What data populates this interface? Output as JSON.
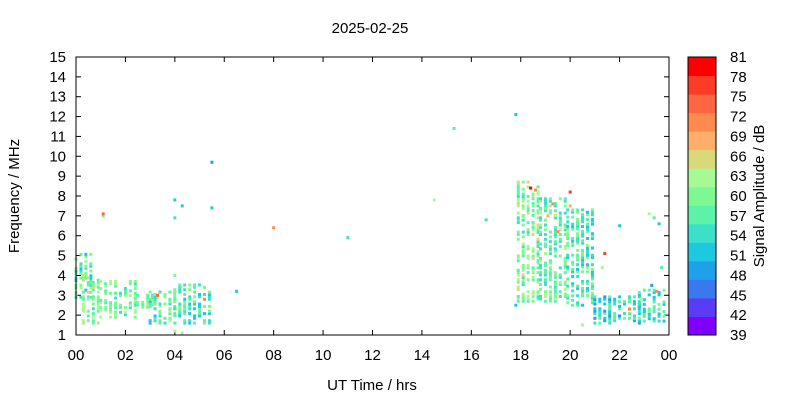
{
  "chart_data": {
    "type": "heatmap",
    "title": "2025-02-25",
    "xlabel": "UT Time / hrs",
    "ylabel": "Frequency / MHz",
    "colorbar_label": "Signal Amplitude / dB",
    "xlim": [
      0,
      24
    ],
    "ylim": [
      1,
      15
    ],
    "x_ticks": [
      "00",
      "02",
      "04",
      "06",
      "08",
      "10",
      "12",
      "14",
      "16",
      "18",
      "20",
      "22",
      "00"
    ],
    "y_ticks": [
      "1",
      "2",
      "3",
      "4",
      "5",
      "6",
      "7",
      "8",
      "9",
      "10",
      "11",
      "12",
      "13",
      "14",
      "15"
    ],
    "colorbar_ticks": [
      "39",
      "42",
      "45",
      "48",
      "51",
      "54",
      "57",
      "60",
      "63",
      "66",
      "69",
      "72",
      "75",
      "78",
      "81"
    ],
    "colorbar_range": [
      39,
      81
    ],
    "colorbar_colors": [
      "#8000ff",
      "#5a3cf5",
      "#3a78f0",
      "#1fa0ea",
      "#1ec8e0",
      "#3ce0c8",
      "#5cf2aa",
      "#7ef890",
      "#a6fa96",
      "#d8da7a",
      "#fdae6a",
      "#fd8a4e",
      "#fd6640",
      "#fd3c28",
      "#ff0000"
    ],
    "point_groups": [
      {
        "x": [
          0.0,
          0.6
        ],
        "y": [
          2.9,
          5.1
        ],
        "value": 57
      },
      {
        "x": [
          0.3,
          1.0
        ],
        "y": [
          1.6,
          4.0
        ],
        "value": 60
      },
      {
        "x": [
          1.0,
          2.5
        ],
        "y": [
          1.9,
          3.8
        ],
        "value": 59
      },
      {
        "x": [
          2.5,
          3.3
        ],
        "y": [
          2.4,
          3.2
        ],
        "value": 61
      },
      {
        "x": [
          3.0,
          4.0
        ],
        "y": [
          1.6,
          3.2
        ],
        "value": 57
      },
      {
        "x": [
          4.0,
          5.5
        ],
        "y": [
          1.6,
          3.6
        ],
        "value": 56
      },
      {
        "x": [
          17.9,
          18.8
        ],
        "y": [
          2.7,
          8.7
        ],
        "value": 60
      },
      {
        "x": [
          18.8,
          19.9
        ],
        "y": [
          2.7,
          7.9
        ],
        "value": 58
      },
      {
        "x": [
          19.9,
          21.0
        ],
        "y": [
          2.5,
          7.3
        ],
        "value": 56
      },
      {
        "x": [
          21.0,
          22.8
        ],
        "y": [
          1.6,
          3.0
        ],
        "value": 54
      },
      {
        "x": [
          22.8,
          23.9
        ],
        "y": [
          1.7,
          3.3
        ],
        "value": 55
      }
    ],
    "points": [
      {
        "x": 1.1,
        "y": 7.0,
        "value": 60
      },
      {
        "x": 1.1,
        "y": 7.1,
        "value": 74
      },
      {
        "x": 3.3,
        "y": 3.0,
        "value": 73
      },
      {
        "x": 4.0,
        "y": 6.9,
        "value": 53
      },
      {
        "x": 4.0,
        "y": 7.8,
        "value": 52
      },
      {
        "x": 4.3,
        "y": 7.5,
        "value": 51
      },
      {
        "x": 4.0,
        "y": 4.0,
        "value": 61
      },
      {
        "x": 4.0,
        "y": 1.2,
        "value": 62
      },
      {
        "x": 4.3,
        "y": 1.1,
        "value": 63
      },
      {
        "x": 5.5,
        "y": 9.7,
        "value": 50
      },
      {
        "x": 5.5,
        "y": 7.4,
        "value": 51
      },
      {
        "x": 5.2,
        "y": 2.8,
        "value": 72
      },
      {
        "x": 6.5,
        "y": 3.2,
        "value": 51
      },
      {
        "x": 8.0,
        "y": 6.4,
        "value": 71
      },
      {
        "x": 11.0,
        "y": 5.9,
        "value": 53
      },
      {
        "x": 14.5,
        "y": 7.8,
        "value": 64
      },
      {
        "x": 15.3,
        "y": 11.4,
        "value": 56
      },
      {
        "x": 16.6,
        "y": 6.8,
        "value": 54
      },
      {
        "x": 17.8,
        "y": 12.1,
        "value": 51
      },
      {
        "x": 17.8,
        "y": 2.5,
        "value": 51
      },
      {
        "x": 18.4,
        "y": 8.4,
        "value": 80
      },
      {
        "x": 18.6,
        "y": 8.3,
        "value": 72
      },
      {
        "x": 19.3,
        "y": 7.6,
        "value": 70
      },
      {
        "x": 19.1,
        "y": 7.0,
        "value": 69
      },
      {
        "x": 19.5,
        "y": 6.2,
        "value": 70
      },
      {
        "x": 20.0,
        "y": 8.2,
        "value": 76
      },
      {
        "x": 20.0,
        "y": 7.5,
        "value": 68
      },
      {
        "x": 21.4,
        "y": 5.1,
        "value": 78
      },
      {
        "x": 21.3,
        "y": 4.4,
        "value": 63
      },
      {
        "x": 22.0,
        "y": 6.5,
        "value": 52
      },
      {
        "x": 22.4,
        "y": 2.3,
        "value": 72
      },
      {
        "x": 20.5,
        "y": 1.5,
        "value": 63
      },
      {
        "x": 23.2,
        "y": 7.1,
        "value": 63
      },
      {
        "x": 23.4,
        "y": 6.9,
        "value": 56
      },
      {
        "x": 23.6,
        "y": 6.6,
        "value": 52
      },
      {
        "x": 23.7,
        "y": 4.4,
        "value": 56
      },
      {
        "x": 23.3,
        "y": 3.5,
        "value": 50
      },
      {
        "x": 23.5,
        "y": 3.2,
        "value": 72
      },
      {
        "x": 22.9,
        "y": 2.8,
        "value": 63
      }
    ]
  }
}
